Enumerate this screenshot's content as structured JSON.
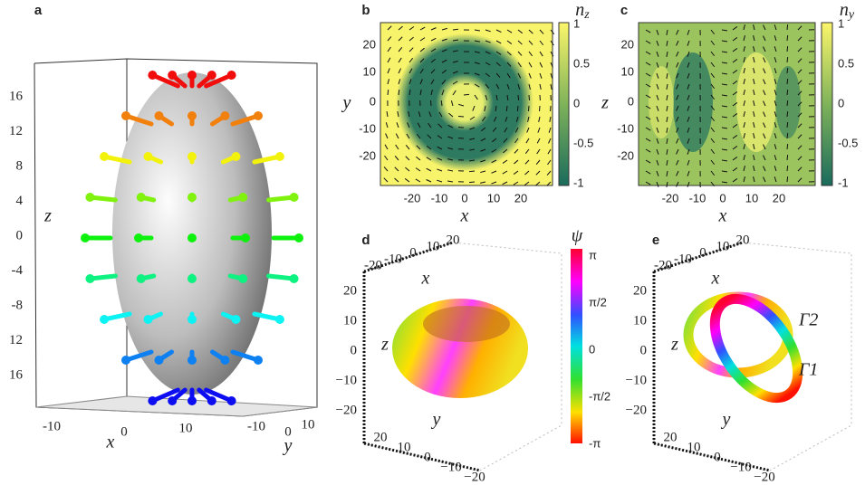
{
  "panels": [
    {
      "label": "a",
      "z_label": "z",
      "x_label": "x",
      "y_label": "y",
      "z_ticks": [
        "16",
        "12",
        "8",
        "4",
        "0",
        "-4",
        "-8",
        "12",
        "16"
      ],
      "x_ticks": [
        "-10",
        "0",
        "10"
      ],
      "y_ticks": [
        "-10",
        "0",
        "10"
      ]
    },
    {
      "label": "b",
      "colorbar_symbol": "n",
      "colorbar_subscript": "z",
      "x_label": "x",
      "y_label": "y",
      "y_ticks": [
        "20",
        "10",
        "0",
        "-10",
        "-20"
      ],
      "x_ticks": [
        "-20",
        "-10",
        "0",
        "10",
        "20"
      ],
      "colorbar_ticks": [
        "1",
        "0.5",
        "0",
        "-0.5",
        "-1"
      ]
    },
    {
      "label": "c",
      "colorbar_symbol": "n",
      "colorbar_subscript": "y",
      "x_label": "x",
      "y_label": "z",
      "y_ticks": [
        "20",
        "10",
        "0",
        "-10",
        "-20"
      ],
      "x_ticks": [
        "-20",
        "-10",
        "0",
        "10",
        "20"
      ],
      "colorbar_ticks": [
        "1",
        "0.5",
        "0",
        "-0.5",
        "-1"
      ]
    },
    {
      "label": "d",
      "x_label": "x",
      "y_label": "y",
      "z_label": "z",
      "x_ticks": [
        "-20",
        "-10",
        "0",
        "10",
        "20"
      ],
      "z_ticks": [
        "20",
        "10",
        "0",
        "−10",
        "−20"
      ],
      "y_ticks": [
        "20",
        "10",
        "0",
        "−10",
        "−20"
      ],
      "colorbar_title": "ψ",
      "colorbar_ticks": [
        "π",
        "π/2",
        "0",
        "-π/2",
        "-π"
      ]
    },
    {
      "label": "e",
      "x_label": "x",
      "y_label": "y",
      "z_label": "z",
      "x_ticks": [
        "-20",
        "-10",
        "0",
        "10",
        "20"
      ],
      "z_ticks": [
        "20",
        "10",
        "0",
        "−10",
        "−20"
      ],
      "y_ticks": [
        "20",
        "10",
        "0",
        "−10",
        "−20"
      ],
      "annotations": [
        "Γ2",
        "Γ1"
      ]
    }
  ]
}
